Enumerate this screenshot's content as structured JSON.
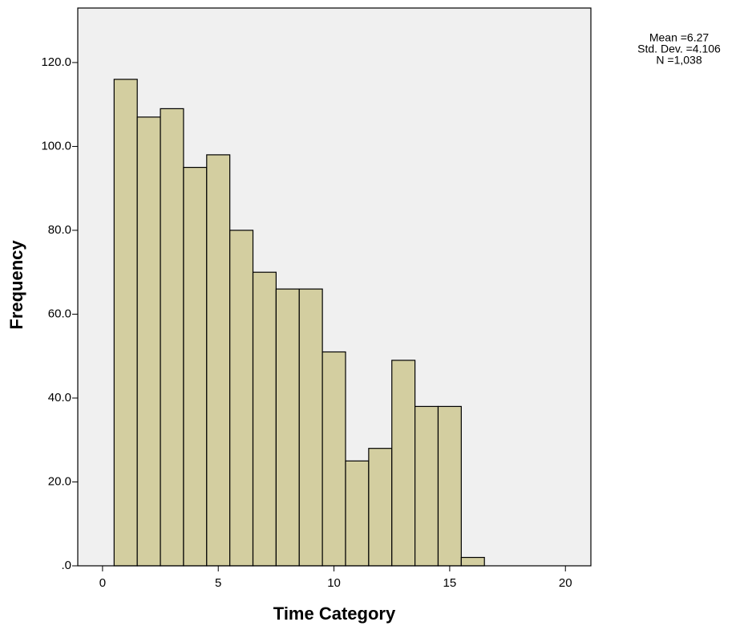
{
  "chart_data": {
    "type": "histogram",
    "x_label": "Time Category",
    "y_label": "Frequency",
    "bins": [
      0.5,
      1.5,
      2.5,
      3.5,
      4.5,
      5.5,
      6.5,
      7.5,
      8.5,
      9.5,
      10.5,
      11.5,
      12.5,
      13.5,
      14.5,
      15.5,
      16.5
    ],
    "values": [
      116,
      107,
      109,
      95,
      98,
      80,
      70,
      66,
      66,
      51,
      25,
      28,
      49,
      38,
      38,
      2
    ],
    "color": "#d3cea0",
    "xlim": [
      -1.07,
      21.1
    ],
    "ylim": [
      0,
      133
    ],
    "xticks": [
      0,
      5,
      10,
      15,
      20
    ],
    "yticks": [
      {
        "value": 0,
        "label": ".0"
      },
      {
        "value": 20,
        "label": "20.0"
      },
      {
        "value": 40,
        "label": "40.0"
      },
      {
        "value": 60,
        "label": "60.0"
      },
      {
        "value": 80,
        "label": "80.0"
      },
      {
        "value": 100,
        "label": "100.0"
      },
      {
        "value": 120,
        "label": "120.0"
      }
    ],
    "annotations": [
      "Mean =6.27",
      "Std. Dev. =4.106",
      "N =1,038"
    ]
  }
}
